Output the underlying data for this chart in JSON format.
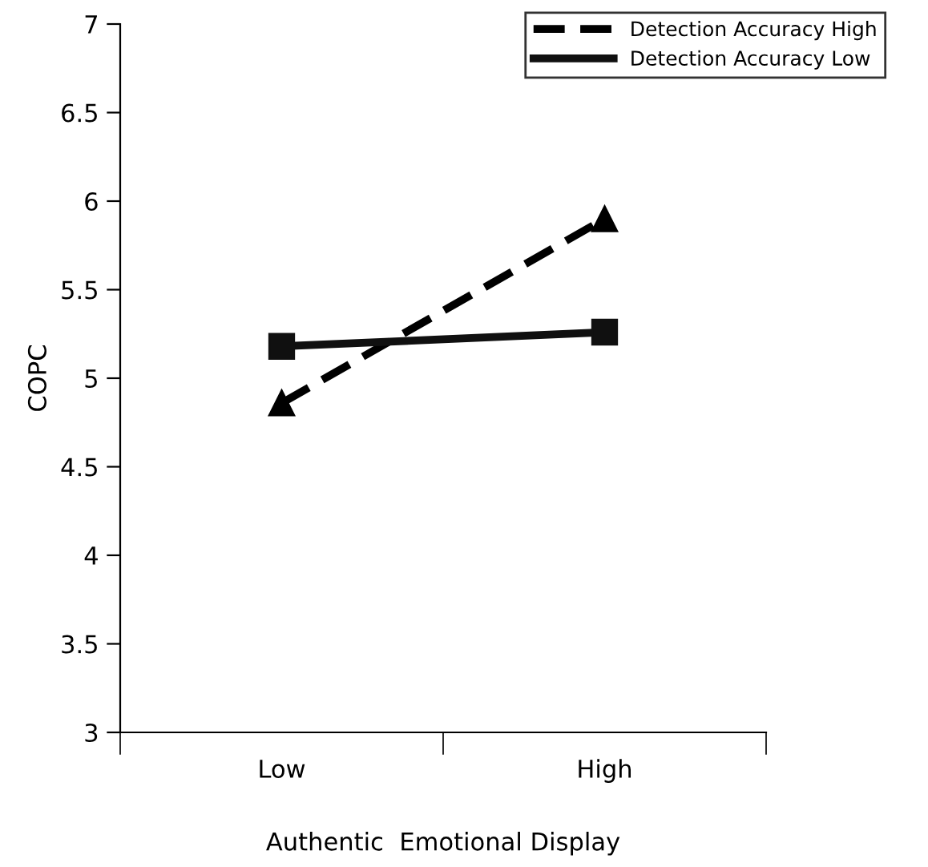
{
  "chart_data": {
    "type": "line",
    "xlabel": "Authentic  Emotional Display",
    "ylabel": "COPC",
    "categories": [
      "Low",
      "High"
    ],
    "series": [
      {
        "name": "Detection Accuracy High",
        "color": "#000000",
        "values": [
          4.86,
          5.9
        ],
        "marker": "triangle",
        "line_style": "dashed"
      },
      {
        "name": "Detection Accuracy Low",
        "color": "#101010",
        "values": [
          5.18,
          5.26
        ],
        "marker": "square",
        "line_style": "solid"
      }
    ],
    "ylim": [
      3,
      7
    ],
    "yticks": [
      3,
      3.5,
      4,
      4.5,
      5,
      5.5,
      6,
      6.5,
      7
    ],
    "grid": false,
    "legend": "top right"
  }
}
